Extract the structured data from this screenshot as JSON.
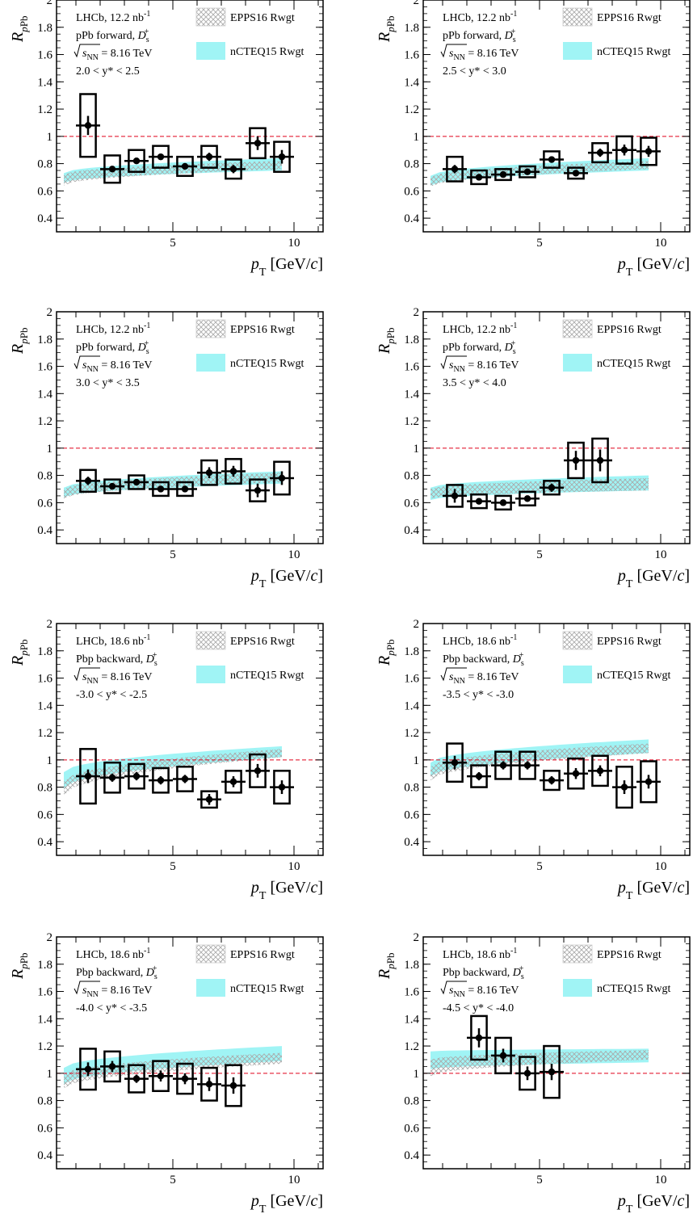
{
  "figure": {
    "xlabel_var": "p",
    "xlabel_sub": "T",
    "xlabel_unit": "[GeV/",
    "xlabel_unit_c": "c",
    "xlabel_unit_close": "]",
    "ylabel_main": "R",
    "ylabel_sub": "pPb",
    "legend": {
      "epps": "EPPS16 Rwgt",
      "ncteq": "nCTEQ15 Rwgt"
    },
    "colors": {
      "epps_hatch": "#aaaaaa",
      "ncteq_fill": "#80f0f2",
      "reference_line": "#e0001a",
      "data": "#000000"
    }
  },
  "chart_data": [
    {
      "type": "scatter",
      "panel": "forward 2.0-2.5",
      "info": [
        "LHCb, 12.2 nb",
        "-1",
        "pPb forward, D",
        "s",
        "+",
        "sNN",
        "= 8.16 TeV",
        "2.0 < y* < 2.5"
      ],
      "xlim": [
        0.2,
        11.2
      ],
      "ylim": [
        0.3,
        2.0
      ],
      "x": [
        1.5,
        2.5,
        3.5,
        4.5,
        5.5,
        6.5,
        7.5,
        8.5,
        9.5
      ],
      "y": [
        1.08,
        0.76,
        0.82,
        0.85,
        0.78,
        0.85,
        0.76,
        0.95,
        0.85
      ],
      "stat_err": [
        0.07,
        0.02,
        0.02,
        0.02,
        0.02,
        0.03,
        0.03,
        0.05,
        0.05
      ],
      "syst_err": [
        0.23,
        0.1,
        0.08,
        0.08,
        0.07,
        0.08,
        0.07,
        0.11,
        0.11
      ],
      "epps_band": {
        "x": [
          0.5,
          9.5
        ],
        "low": [
          0.64,
          0.76
        ],
        "high": [
          0.72,
          0.82
        ]
      },
      "ncteq_band": {
        "x": [
          0.5,
          9.5
        ],
        "low": [
          0.66,
          0.75
        ],
        "high": [
          0.73,
          0.84
        ]
      }
    },
    {
      "type": "scatter",
      "panel": "forward 2.5-3.0",
      "info": [
        "LHCb, 12.2 nb",
        "-1",
        "pPb forward, D",
        "s",
        "+",
        "sNN",
        "= 8.16 TeV",
        "2.5 < y* < 3.0"
      ],
      "xlim": [
        0.2,
        11.2
      ],
      "ylim": [
        0.3,
        2.0
      ],
      "x": [
        1.5,
        2.5,
        3.5,
        4.5,
        5.5,
        6.5,
        7.5,
        8.5,
        9.5
      ],
      "y": [
        0.76,
        0.7,
        0.72,
        0.74,
        0.83,
        0.73,
        0.88,
        0.9,
        0.89
      ],
      "stat_err": [
        0.03,
        0.02,
        0.02,
        0.02,
        0.02,
        0.02,
        0.03,
        0.04,
        0.04
      ],
      "syst_err": [
        0.09,
        0.05,
        0.04,
        0.04,
        0.06,
        0.04,
        0.07,
        0.1,
        0.1
      ],
      "epps_band": {
        "x": [
          0.5,
          9.5
        ],
        "low": [
          0.63,
          0.76
        ],
        "high": [
          0.7,
          0.82
        ]
      },
      "ncteq_band": {
        "x": [
          0.5,
          9.5
        ],
        "low": [
          0.64,
          0.75
        ],
        "high": [
          0.71,
          0.84
        ]
      }
    },
    {
      "type": "scatter",
      "panel": "forward 3.0-3.5",
      "info": [
        "LHCb, 12.2 nb",
        "-1",
        "pPb forward, D",
        "s",
        "+",
        "sNN",
        "= 8.16 TeV",
        "3.0 < y* < 3.5"
      ],
      "xlim": [
        0.2,
        11.2
      ],
      "ylim": [
        0.3,
        2.0
      ],
      "x": [
        1.5,
        2.5,
        3.5,
        4.5,
        5.5,
        6.5,
        7.5,
        8.5,
        9.5
      ],
      "y": [
        0.76,
        0.72,
        0.75,
        0.7,
        0.7,
        0.82,
        0.83,
        0.69,
        0.78
      ],
      "stat_err": [
        0.03,
        0.02,
        0.02,
        0.02,
        0.02,
        0.04,
        0.04,
        0.05,
        0.05
      ],
      "syst_err": [
        0.08,
        0.05,
        0.05,
        0.05,
        0.05,
        0.09,
        0.09,
        0.08,
        0.12
      ],
      "epps_band": {
        "x": [
          0.5,
          9.5
        ],
        "low": [
          0.63,
          0.75
        ],
        "high": [
          0.7,
          0.82
        ]
      },
      "ncteq_band": {
        "x": [
          0.5,
          9.5
        ],
        "low": [
          0.64,
          0.74
        ],
        "high": [
          0.71,
          0.83
        ]
      }
    },
    {
      "type": "scatter",
      "panel": "forward 3.5-4.0",
      "info": [
        "LHCb, 12.2 nb",
        "-1",
        "pPb forward, D",
        "s",
        "+",
        "sNN",
        "= 8.16 TeV",
        "3.5 < y* < 4.0"
      ],
      "xlim": [
        0.2,
        11.2
      ],
      "ylim": [
        0.3,
        2.0
      ],
      "x": [
        1.5,
        2.5,
        3.5,
        4.5,
        5.5,
        6.5,
        7.5
      ],
      "y": [
        0.65,
        0.61,
        0.6,
        0.63,
        0.71,
        0.91,
        0.91
      ],
      "stat_err": [
        0.05,
        0.02,
        0.02,
        0.02,
        0.03,
        0.07,
        0.08
      ],
      "syst_err": [
        0.08,
        0.05,
        0.05,
        0.05,
        0.05,
        0.13,
        0.16
      ],
      "epps_band": {
        "x": [
          0.5,
          9.5
        ],
        "low": [
          0.63,
          0.69
        ],
        "high": [
          0.7,
          0.78
        ]
      },
      "ncteq_band": {
        "x": [
          0.5,
          9.5
        ],
        "low": [
          0.62,
          0.69
        ],
        "high": [
          0.71,
          0.8
        ]
      }
    },
    {
      "type": "scatter",
      "panel": "backward -3.0 to -2.5",
      "info": [
        "LHCb, 18.6 nb",
        "-1",
        "Pbp backward, D",
        "s",
        "+",
        "sNN",
        "= 8.16 TeV",
        "-3.0 < y* < -2.5"
      ],
      "xlim": [
        0.2,
        11.2
      ],
      "ylim": [
        0.3,
        2.0
      ],
      "x": [
        1.5,
        2.5,
        3.5,
        4.5,
        5.5,
        6.5,
        7.5,
        8.5,
        9.5
      ],
      "y": [
        0.88,
        0.87,
        0.88,
        0.85,
        0.86,
        0.71,
        0.84,
        0.92,
        0.8
      ],
      "stat_err": [
        0.05,
        0.03,
        0.03,
        0.03,
        0.03,
        0.04,
        0.04,
        0.05,
        0.05
      ],
      "syst_err": [
        0.2,
        0.11,
        0.09,
        0.09,
        0.09,
        0.06,
        0.08,
        0.12,
        0.12
      ],
      "epps_band": {
        "x": [
          0.5,
          9.5
        ],
        "low": [
          0.74,
          1.02
        ],
        "high": [
          0.84,
          1.08
        ]
      },
      "ncteq_band": {
        "x": [
          0.5,
          9.5
        ],
        "low": [
          0.79,
          1.02
        ],
        "high": [
          0.91,
          1.1
        ]
      }
    },
    {
      "type": "scatter",
      "panel": "backward -3.5 to -3.0",
      "info": [
        "LHCb, 18.6 nb",
        "-1",
        "Pbp backward, D",
        "s",
        "+",
        "sNN",
        "= 8.16 TeV",
        "-3.5 < y* < -3.0"
      ],
      "xlim": [
        0.2,
        11.2
      ],
      "ylim": [
        0.3,
        2.0
      ],
      "x": [
        1.5,
        2.5,
        3.5,
        4.5,
        5.5,
        6.5,
        7.5,
        8.5,
        9.5
      ],
      "y": [
        0.98,
        0.88,
        0.96,
        0.96,
        0.85,
        0.9,
        0.92,
        0.8,
        0.84
      ],
      "stat_err": [
        0.05,
        0.03,
        0.03,
        0.03,
        0.03,
        0.04,
        0.04,
        0.05,
        0.05
      ],
      "syst_err": [
        0.14,
        0.08,
        0.1,
        0.1,
        0.07,
        0.11,
        0.11,
        0.15,
        0.15
      ],
      "epps_band": {
        "x": [
          0.5,
          9.5
        ],
        "low": [
          0.85,
          1.05
        ],
        "high": [
          0.95,
          1.12
        ]
      },
      "ncteq_band": {
        "x": [
          0.5,
          9.5
        ],
        "low": [
          0.88,
          1.05
        ],
        "high": [
          0.98,
          1.15
        ]
      }
    },
    {
      "type": "scatter",
      "panel": "backward -4.0 to -3.5",
      "info": [
        "LHCb, 18.6 nb",
        "-1",
        "Pbp backward, D",
        "s",
        "+",
        "sNN",
        "= 8.16 TeV",
        "-4.0 < y* < -3.5"
      ],
      "xlim": [
        0.2,
        11.2
      ],
      "ylim": [
        0.3,
        2.0
      ],
      "x": [
        1.5,
        2.5,
        3.5,
        4.5,
        5.5,
        6.5,
        7.5
      ],
      "y": [
        1.03,
        1.05,
        0.96,
        0.98,
        0.96,
        0.92,
        0.91
      ],
      "stat_err": [
        0.05,
        0.04,
        0.03,
        0.04,
        0.04,
        0.05,
        0.06
      ],
      "syst_err": [
        0.15,
        0.11,
        0.1,
        0.11,
        0.11,
        0.12,
        0.15
      ],
      "epps_band": {
        "x": [
          0.5,
          9.5
        ],
        "low": [
          0.89,
          1.07
        ],
        "high": [
          0.99,
          1.15
        ]
      },
      "ncteq_band": {
        "x": [
          0.5,
          9.5
        ],
        "low": [
          0.92,
          1.09
        ],
        "high": [
          1.04,
          1.2
        ]
      }
    },
    {
      "type": "scatter",
      "panel": "backward -4.5 to -4.0",
      "info": [
        "LHCb, 18.6 nb",
        "-1",
        "Pbp backward, D",
        "s",
        "+",
        "sNN",
        "= 8.16 TeV",
        "-4.5 < y* < -4.0"
      ],
      "xlim": [
        0.2,
        11.2
      ],
      "ylim": [
        0.3,
        2.0
      ],
      "x": [
        2.5,
        3.5,
        4.5,
        5.5
      ],
      "y": [
        1.26,
        1.13,
        1.0,
        1.01
      ],
      "stat_err": [
        0.07,
        0.05,
        0.05,
        0.06
      ],
      "syst_err": [
        0.16,
        0.13,
        0.12,
        0.19
      ],
      "epps_band": {
        "x": [
          0.5,
          9.5
        ],
        "low": [
          0.98,
          1.1
        ],
        "high": [
          1.1,
          1.17
        ]
      },
      "ncteq_band": {
        "x": [
          0.5,
          9.5
        ],
        "low": [
          1.03,
          1.08
        ],
        "high": [
          1.16,
          1.18
        ]
      }
    }
  ]
}
